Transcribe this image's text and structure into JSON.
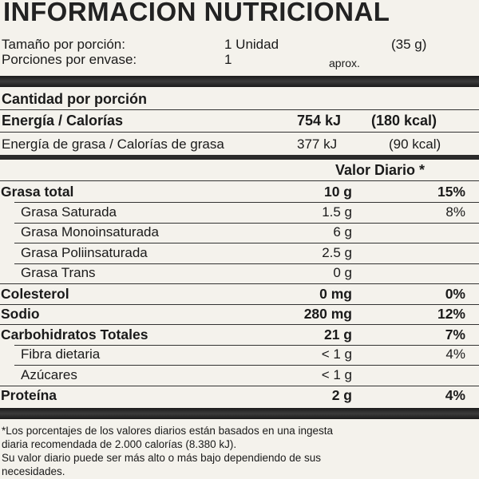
{
  "title": "INFORMACION NUTRICIONAL",
  "serving": {
    "size_label": "Tamaño por porción:",
    "size_value": "1 Unidad",
    "size_weight": "(35 g)",
    "per_container_label": "Porciones por envase:",
    "per_container_value": "1",
    "per_container_note": "aprox."
  },
  "amount_header": "Cantidad por porción",
  "energy": {
    "label": "Energía / Calorías",
    "kj": "754 kJ",
    "kcal": "(180 kcal)"
  },
  "fat_energy": {
    "label": "Energía de grasa / Calorías de grasa",
    "kj": "377 kJ",
    "kcal": "(90 kcal)"
  },
  "dv_header": "Valor Diario *",
  "nutrients": [
    {
      "name": "Grasa total",
      "amount": "10 g",
      "dv": "15%",
      "bold": true,
      "indent": false
    },
    {
      "name": "Grasa Saturada",
      "amount": "1.5 g",
      "dv": "8%",
      "bold": false,
      "indent": true
    },
    {
      "name": "Grasa Monoinsaturada",
      "amount": "6 g",
      "dv": "",
      "bold": false,
      "indent": true
    },
    {
      "name": "Grasa Poliinsaturada",
      "amount": "2.5 g",
      "dv": "",
      "bold": false,
      "indent": true
    },
    {
      "name": "Grasa Trans",
      "amount": "0 g",
      "dv": "",
      "bold": false,
      "indent": true
    },
    {
      "name": "Colesterol",
      "amount": "0 mg",
      "dv": "0%",
      "bold": true,
      "indent": false
    },
    {
      "name": "Sodio",
      "amount": "280 mg",
      "dv": "12%",
      "bold": true,
      "indent": false
    },
    {
      "name": "Carbohidratos Totales",
      "amount": "21 g",
      "dv": "7%",
      "bold": true,
      "indent": false
    },
    {
      "name": "Fibra dietaria",
      "amount": "< 1 g",
      "dv": "4%",
      "bold": false,
      "indent": true
    },
    {
      "name": "Azúcares",
      "amount": "< 1 g",
      "dv": "",
      "bold": false,
      "indent": true
    },
    {
      "name": "Proteína",
      "amount": "2 g",
      "dv": "4%",
      "bold": true,
      "indent": false
    }
  ],
  "footnote": {
    "line1": "*Los porcentajes de los valores diarios están basados en una ingesta",
    "line2": "diaria recomendada de 2.000 calorías (8.380 kJ).",
    "line3": "Su valor diario puede ser más alto o más bajo dependiendo de sus",
    "line4": "necesidades."
  }
}
